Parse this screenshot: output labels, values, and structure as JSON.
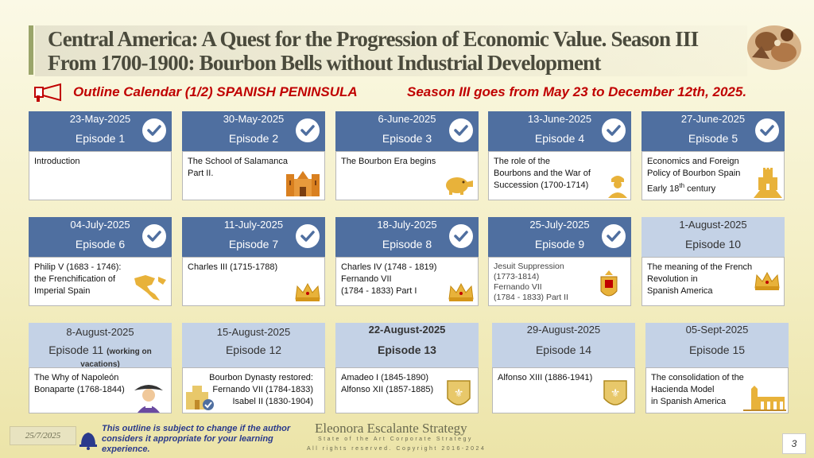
{
  "title": {
    "line1": "Central America:  A Quest for the Progression of Economic Value. Season III",
    "line2": "From 1700-1900: Bourbon Bells without Industrial Development"
  },
  "subtitle": {
    "left": "Outline Calendar (1/2) SPANISH PENINSULA",
    "right": "Season III goes from May 23 to December 12th, 2025."
  },
  "colors": {
    "done_header": "#4f6fa0",
    "pending_header": "#c4d2e6",
    "subtitle": "#c00000",
    "note": "#2a3a8c"
  },
  "episodes": [
    {
      "date": "23-May-2025",
      "episode": "Episode 1",
      "desc": [
        "Introduction"
      ],
      "done": true,
      "icon": ""
    },
    {
      "date": "30-May-2025",
      "episode": "Episode 2",
      "desc": [
        "The School of Salamanca",
        "Part II."
      ],
      "done": true,
      "icon": "cathedral-icon"
    },
    {
      "date": "6-June-2025",
      "episode": "Episode 3",
      "desc": [
        "The Bourbon Era begins"
      ],
      "done": true,
      "icon": "piggy-bank-icon"
    },
    {
      "date": "13-June-2025",
      "episode": "Episode 4",
      "desc": [
        "The role of the",
        "Bourbons and the War of",
        "Succession (1700-1714)"
      ],
      "done": true,
      "icon": "soldier-icon"
    },
    {
      "date": "27-June-2025",
      "episode": "Episode 5",
      "desc": [
        "Economics and Foreign",
        "Policy of Bourbon Spain"
      ],
      "desc_extra": {
        "prefix": "Early 18",
        "sup": "th",
        "suffix": " century"
      },
      "done": true,
      "icon": "castle-icon"
    },
    {
      "date": "04-July-2025",
      "episode": "Episode 6",
      "desc": [
        "Philip V (1683 - 1746):",
        "the Frenchification of",
        "Imperial Spain"
      ],
      "done": true,
      "icon": "america-map-icon"
    },
    {
      "date": "11-July-2025",
      "episode": "Episode 7",
      "desc": [
        "Charles III (1715-1788)"
      ],
      "done": true,
      "icon": "crown-icon"
    },
    {
      "date": "18-July-2025",
      "episode": "Episode 8",
      "desc": [
        "Charles IV (1748 - 1819)",
        "Fernando VII",
        "(1784 - 1833) Part I"
      ],
      "done": true,
      "icon": "crown-icon"
    },
    {
      "date": "25-July-2025",
      "episode": "Episode 9",
      "desc": [
        "Jesuit Suppression",
        "(1773-1814)",
        "Fernando VII",
        "(1784 - 1833) Part II"
      ],
      "done": true,
      "icon": "royal-shield-icon"
    },
    {
      "date": "1-August-2025",
      "episode": "Episode 10",
      "desc": [
        "The meaning of the French",
        "Revolution in",
        "Spanish America"
      ],
      "done": false,
      "icon": "crown-icon"
    },
    {
      "date": "8-August-2025",
      "episode": "Episode 11",
      "note": "(working on vacations)",
      "desc": [
        "The Why of Napoleón",
        "Bonaparte (1768-1844)"
      ],
      "done": false,
      "icon": "napoleon-icon"
    },
    {
      "date": "15-August-2025",
      "episode": "Episode 12",
      "desc": [
        "Bourbon Dynasty restored:",
        "Fernando VII (1784-1833)",
        "Isabel II (1830-1904)"
      ],
      "done": false,
      "icon": "castle-check-icon"
    },
    {
      "date": "22-August-2025",
      "episode": "Episode 13",
      "desc": [
        "Amadeo I (1845-1890)",
        "Alfonso XII (1857-1885)"
      ],
      "done": false,
      "icon": "fleur-de-lis-shield-icon"
    },
    {
      "date": "29-August-2025",
      "episode": "Episode 14",
      "desc": [
        "Alfonso XIII (1886-1941)"
      ],
      "done": false,
      "icon": "fleur-de-lis-shield-icon"
    },
    {
      "date": "05-Sept-2025",
      "episode": "Episode 15",
      "desc": [
        "The consolidation of the",
        "Hacienda Model",
        "in Spanish America"
      ],
      "done": false,
      "icon": "hacienda-icon"
    }
  ],
  "footer": {
    "date": "25/7/2025",
    "note": "This outline is subject to change if the author considers it appropriate for your learning experience.",
    "brand": "Eleonora Escalante Strategy",
    "tagline": "State of the Art Corporate Strategy",
    "copyright": "All rights reserved. Copyright 2016-2024",
    "page": "3"
  }
}
